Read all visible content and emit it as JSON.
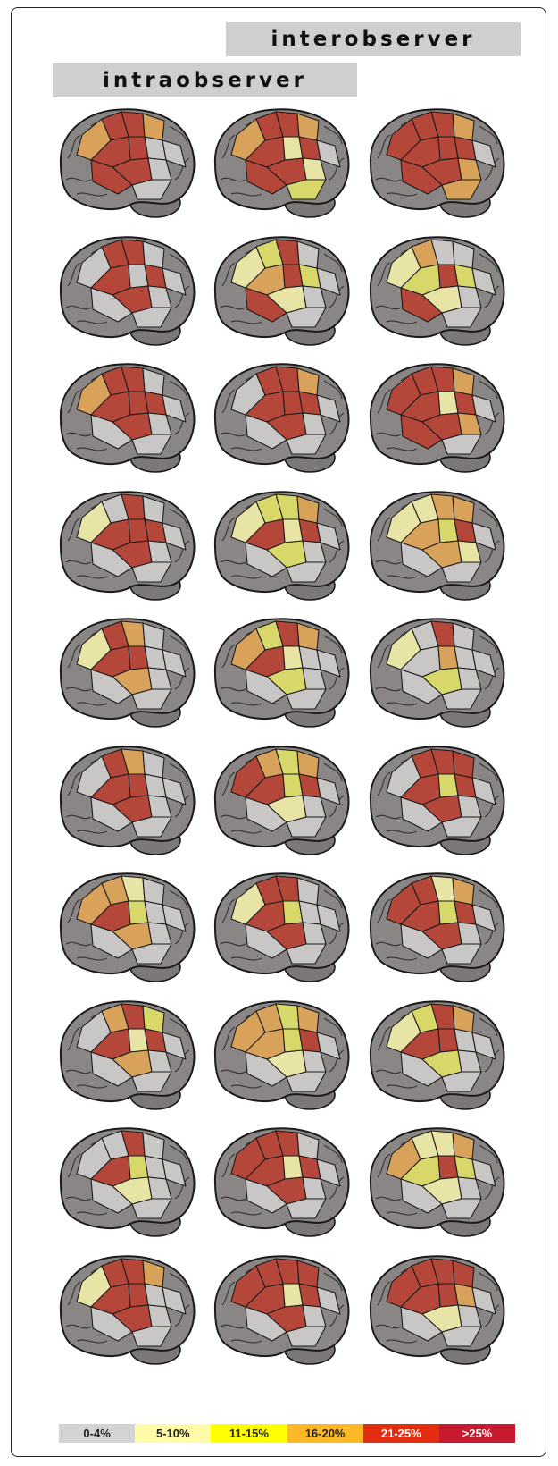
{
  "headers": {
    "interobserver": "interobserver",
    "intraobserver": "intraobserver"
  },
  "palette": {
    "gray": "#c9c6c6",
    "lightyellow": "#e7e4a6",
    "yellow": "#d8d86a",
    "orange": "#d9a25a",
    "red": "#b5473a",
    "darkred": "#9c3a30",
    "brain_base": "#8a8686",
    "outline": "#1a1a1a"
  },
  "legend": [
    {
      "label": "0-4%",
      "color": "#d4d4d4"
    },
    {
      "label": "5-10%",
      "color": "#fffca9"
    },
    {
      "label": "11-15%",
      "color": "#ffff00"
    },
    {
      "label": "16-20%",
      "color": "#fbb827"
    },
    {
      "label": "21-25%",
      "color": "#e32c10"
    },
    {
      "label": ">25%",
      "color": "#c61a2e"
    }
  ],
  "rows": [
    [
      [
        "orange",
        "red",
        "red",
        "red",
        "red",
        "red",
        "orange",
        "gray",
        "gray",
        "red",
        "gray",
        "gray"
      ],
      [
        "orange",
        "red",
        "red",
        "red",
        "lightyellow",
        "red",
        "orange",
        "red",
        "lightyellow",
        "red",
        "yellow",
        "gray"
      ],
      [
        "red",
        "red",
        "red",
        "red",
        "red",
        "red",
        "orange",
        "red",
        "orange",
        "red",
        "orange",
        "gray"
      ]
    ],
    [
      [
        "gray",
        "red",
        "red",
        "red",
        "gray",
        "red",
        "gray",
        "red",
        "gray",
        "gray",
        "gray",
        "gray"
      ],
      [
        "lightyellow",
        "yellow",
        "orange",
        "red",
        "red",
        "lightyellow",
        "gray",
        "yellow",
        "gray",
        "red",
        "gray",
        "gray"
      ],
      [
        "lightyellow",
        "orange",
        "yellow",
        "gray",
        "red",
        "lightyellow",
        "gray",
        "yellow",
        "gray",
        "red",
        "gray",
        "gray"
      ]
    ],
    [
      [
        "orange",
        "red",
        "red",
        "red",
        "red",
        "red",
        "gray",
        "red",
        "gray",
        "gray",
        "gray",
        "gray"
      ],
      [
        "gray",
        "red",
        "red",
        "red",
        "red",
        "red",
        "orange",
        "red",
        "gray",
        "gray",
        "gray",
        "gray"
      ],
      [
        "red",
        "red",
        "red",
        "red",
        "lightyellow",
        "red",
        "orange",
        "red",
        "orange",
        "red",
        "gray",
        "gray"
      ]
    ],
    [
      [
        "lightyellow",
        "gray",
        "red",
        "red",
        "red",
        "red",
        "gray",
        "red",
        "gray",
        "gray",
        "gray",
        "gray"
      ],
      [
        "lightyellow",
        "yellow",
        "red",
        "yellow",
        "lightyellow",
        "yellow",
        "orange",
        "red",
        "gray",
        "gray",
        "gray",
        "gray"
      ],
      [
        "lightyellow",
        "lightyellow",
        "orange",
        "orange",
        "yellow",
        "orange",
        "orange",
        "red",
        "lightyellow",
        "gray",
        "gray",
        "gray"
      ]
    ],
    [
      [
        "lightyellow",
        "red",
        "red",
        "orange",
        "red",
        "orange",
        "gray",
        "gray",
        "gray",
        "gray",
        "gray",
        "gray"
      ],
      [
        "orange",
        "yellow",
        "red",
        "red",
        "lightyellow",
        "yellow",
        "orange",
        "gray",
        "gray",
        "gray",
        "gray",
        "gray"
      ],
      [
        "lightyellow",
        "gray",
        "gray",
        "red",
        "orange",
        "yellow",
        "gray",
        "gray",
        "gray",
        "gray",
        "gray",
        "gray"
      ]
    ],
    [
      [
        "gray",
        "red",
        "red",
        "orange",
        "red",
        "red",
        "gray",
        "gray",
        "gray",
        "gray",
        "gray",
        "gray"
      ],
      [
        "red",
        "orange",
        "red",
        "yellow",
        "yellow",
        "lightyellow",
        "orange",
        "red",
        "gray",
        "gray",
        "gray",
        "gray"
      ],
      [
        "gray",
        "red",
        "red",
        "red",
        "yellow",
        "red",
        "red",
        "red",
        "gray",
        "gray",
        "gray",
        "gray"
      ]
    ],
    [
      [
        "orange",
        "orange",
        "red",
        "lightyellow",
        "yellow",
        "orange",
        "gray",
        "gray",
        "gray",
        "gray",
        "gray",
        "gray"
      ],
      [
        "lightyellow",
        "red",
        "red",
        "red",
        "yellow",
        "red",
        "gray",
        "gray",
        "gray",
        "gray",
        "gray",
        "gray"
      ],
      [
        "red",
        "red",
        "red",
        "lightyellow",
        "yellow",
        "red",
        "orange",
        "red",
        "gray",
        "gray",
        "gray",
        "gray"
      ]
    ],
    [
      [
        "gray",
        "orange",
        "red",
        "red",
        "lightyellow",
        "orange",
        "yellow",
        "red",
        "gray",
        "gray",
        "gray",
        "gray"
      ],
      [
        "orange",
        "orange",
        "orange",
        "yellow",
        "yellow",
        "lightyellow",
        "orange",
        "red",
        "gray",
        "gray",
        "gray",
        "gray"
      ],
      [
        "lightyellow",
        "yellow",
        "red",
        "red",
        "red",
        "yellow",
        "orange",
        "gray",
        "gray",
        "gray",
        "gray",
        "gray"
      ]
    ],
    [
      [
        "gray",
        "gray",
        "red",
        "red",
        "yellow",
        "lightyellow",
        "gray",
        "gray",
        "gray",
        "gray",
        "gray",
        "gray"
      ],
      [
        "red",
        "red",
        "red",
        "red",
        "lightyellow",
        "red",
        "gray",
        "red",
        "gray",
        "gray",
        "gray",
        "gray"
      ],
      [
        "orange",
        "lightyellow",
        "yellow",
        "lightyellow",
        "red",
        "lightyellow",
        "orange",
        "yellow",
        "gray",
        "gray",
        "gray",
        "gray"
      ]
    ],
    [
      [
        "lightyellow",
        "red",
        "red",
        "red",
        "red",
        "red",
        "orange",
        "gray",
        "gray",
        "gray",
        "gray",
        "gray"
      ],
      [
        "red",
        "red",
        "red",
        "red",
        "lightyellow",
        "red",
        "red",
        "red",
        "gray",
        "gray",
        "gray",
        "gray"
      ],
      [
        "red",
        "red",
        "red",
        "red",
        "red",
        "lightyellow",
        "red",
        "orange",
        "gray",
        "gray",
        "gray",
        "gray"
      ]
    ]
  ]
}
